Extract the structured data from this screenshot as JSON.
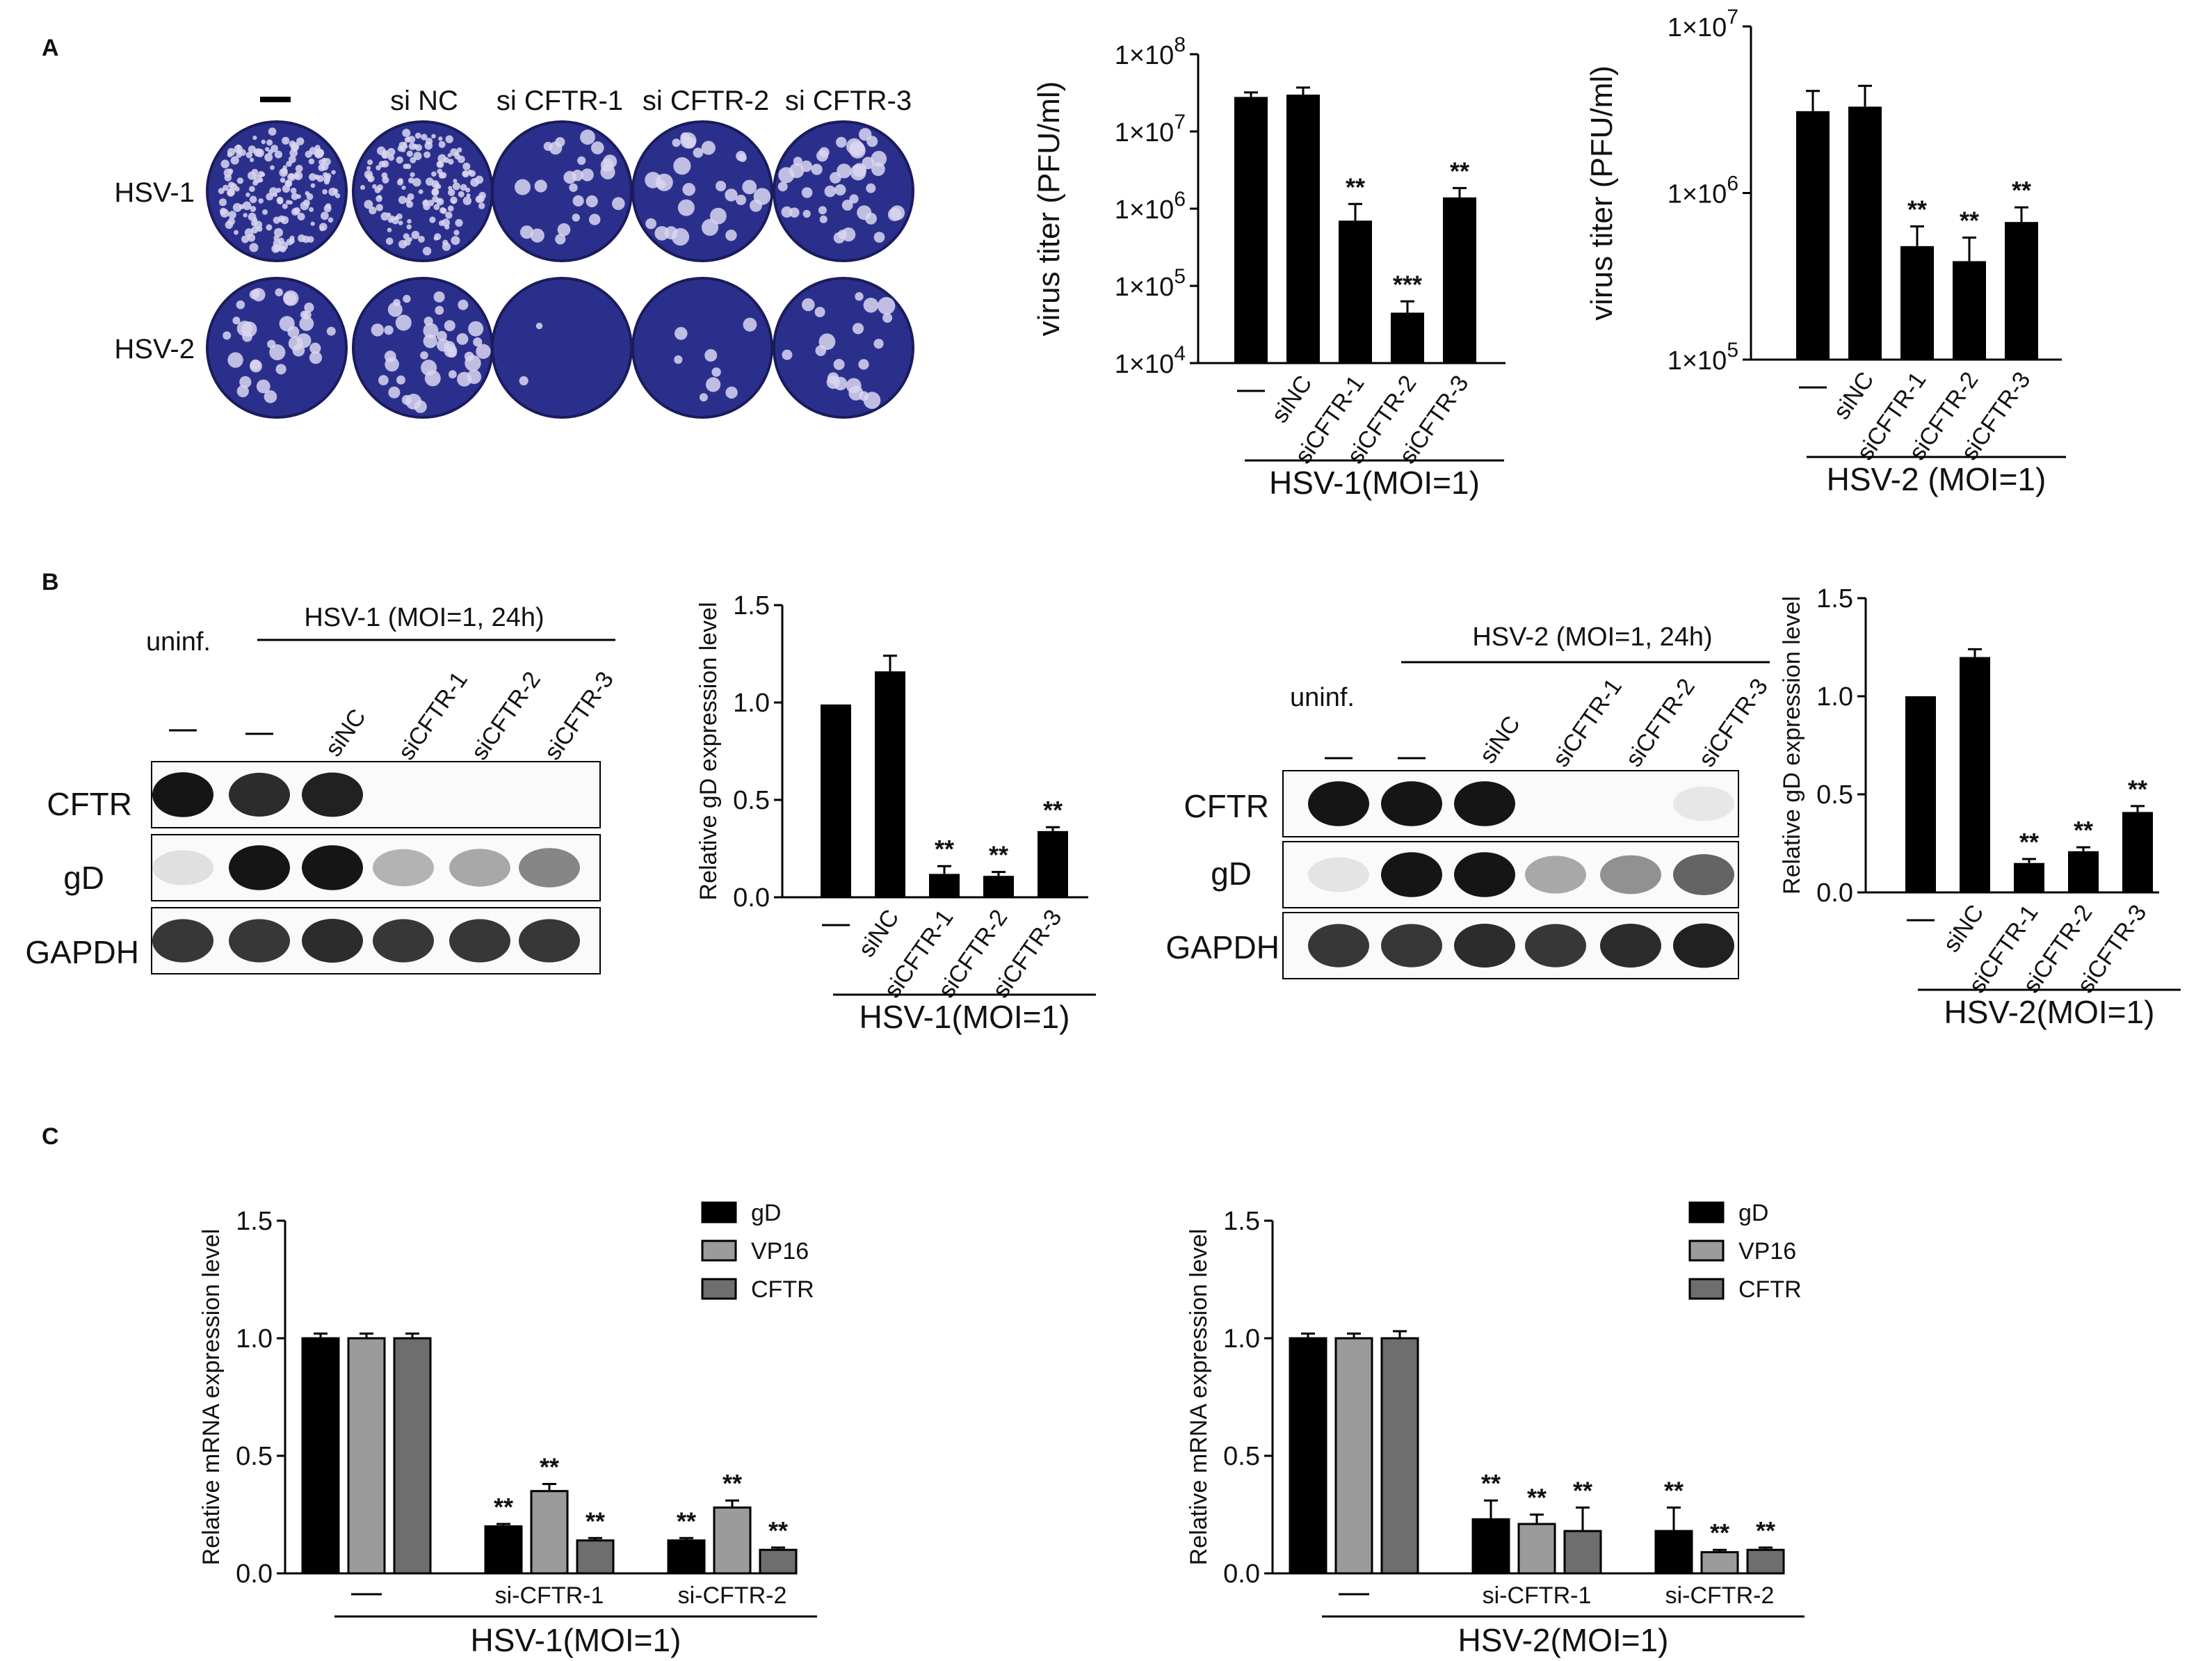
{
  "panels": {
    "a": "A",
    "b": "B",
    "c": "C"
  },
  "colors": {
    "black": "#000000",
    "light_gray": "#9b9b9b",
    "dark_gray": "#6e6e6e",
    "plaque_blue": "#2b2f8c"
  },
  "panel_a": {
    "plaque": {
      "columns": [
        "—",
        "si NC",
        "si CFTR-1",
        "si CFTR-2",
        "si CFTR-3"
      ],
      "rows": [
        "HSV-1",
        "HSV-2"
      ]
    }
  },
  "panel_b": {
    "blot1": {
      "uninf_label": "uninf.",
      "infected_label": "HSV-1 (MOI=1, 24h)",
      "lanes": [
        "—",
        "—",
        "siNC",
        "siCFTR-1",
        "siCFTR-2",
        "siCFTR-3"
      ],
      "rows": [
        "CFTR",
        "gD",
        "GAPDH"
      ]
    },
    "blot2": {
      "uninf_label": "uninf.",
      "infected_label": "HSV-2 (MOI=1, 24h)",
      "lanes": [
        "—",
        "—",
        "siNC",
        "siCFTR-1",
        "siCFTR-2",
        "siCFTR-3"
      ],
      "rows": [
        "CFTR",
        "gD",
        "GAPDH"
      ]
    }
  },
  "chart_data": [
    {
      "id": "a1",
      "type": "bar",
      "scale": "log",
      "ylabel": "virus titer (PFU/ml)",
      "ylim": [
        10000,
        100000000
      ],
      "yticks": [
        {
          "value": 10000,
          "base": "1×10",
          "exp": "4"
        },
        {
          "value": 100000,
          "base": "1×10",
          "exp": "5"
        },
        {
          "value": 1000000,
          "base": "1×10",
          "exp": "6"
        },
        {
          "value": 10000000,
          "base": "1×10",
          "exp": "7"
        },
        {
          "value": 100000000,
          "base": "1×10",
          "exp": "8"
        }
      ],
      "categories": [
        "—",
        "siNC",
        "siCFTR-1",
        "siCFTR-2",
        "siCFTR-3"
      ],
      "values": [
        28000000,
        30000000,
        700000,
        45000,
        1400000
      ],
      "errors": [
        4000000,
        7000000,
        450000,
        18000,
        450000
      ],
      "significance": [
        "",
        "",
        "**",
        "***",
        "**"
      ],
      "group_label": "HSV-1(MOI=1)"
    },
    {
      "id": "a2",
      "type": "bar",
      "scale": "log",
      "ylabel": "virus titer (PFU/ml)",
      "ylim": [
        100000,
        10000000
      ],
      "yticks": [
        {
          "value": 100000,
          "base": "1×10",
          "exp": "5"
        },
        {
          "value": 1000000,
          "base": "1×10",
          "exp": "6"
        },
        {
          "value": 10000000,
          "base": "1×10",
          "exp": "7"
        }
      ],
      "categories": [
        "—",
        "siNC",
        "siCFTR-1",
        "siCFTR-2",
        "siCFTR-3"
      ],
      "values": [
        3100000,
        3300000,
        480000,
        390000,
        670000
      ],
      "errors": [
        1000000,
        1100000,
        150000,
        150000,
        150000
      ],
      "significance": [
        "",
        "",
        "**",
        "**",
        "**"
      ],
      "group_label": "HSV-2 (MOI=1)"
    },
    {
      "id": "b1",
      "type": "bar",
      "scale": "linear",
      "ylabel": "Relative gD expression level",
      "ylim": [
        0,
        1.5
      ],
      "yticks": [
        {
          "value": 0,
          "label": "0.0"
        },
        {
          "value": 0.5,
          "label": "0.5"
        },
        {
          "value": 1,
          "label": "1.0"
        },
        {
          "value": 1.5,
          "label": "1.5"
        }
      ],
      "categories": [
        "—",
        "siNC",
        "siCFTR-1",
        "siCFTR-2",
        "siCFTR-3"
      ],
      "values": [
        0.99,
        1.16,
        0.12,
        0.11,
        0.34
      ],
      "errors": [
        0,
        0.08,
        0.04,
        0.02,
        0.02
      ],
      "significance": [
        "",
        "",
        "**",
        "**",
        "**"
      ],
      "group_label": "HSV-1(MOI=1)"
    },
    {
      "id": "b2",
      "type": "bar",
      "scale": "linear",
      "ylabel": "Relative gD expression level",
      "ylim": [
        0,
        1.5
      ],
      "yticks": [
        {
          "value": 0,
          "label": "0.0"
        },
        {
          "value": 0.5,
          "label": "0.5"
        },
        {
          "value": 1,
          "label": "1.0"
        },
        {
          "value": 1.5,
          "label": "1.5"
        }
      ],
      "categories": [
        "—",
        "siNC",
        "siCFTR-1",
        "siCFTR-2",
        "siCFTR-3"
      ],
      "values": [
        1.0,
        1.2,
        0.15,
        0.21,
        0.41
      ],
      "errors": [
        0,
        0.04,
        0.02,
        0.02,
        0.03
      ],
      "significance": [
        "",
        "",
        "**",
        "**",
        "**"
      ],
      "group_label": "HSV-2(MOI=1)"
    },
    {
      "id": "c1",
      "type": "bar",
      "scale": "linear",
      "ylabel": "Relative mRNA expression level",
      "ylim": [
        0,
        1.5
      ],
      "yticks": [
        {
          "value": 0,
          "label": "0.0"
        },
        {
          "value": 0.5,
          "label": "0.5"
        },
        {
          "value": 1,
          "label": "1.0"
        },
        {
          "value": 1.5,
          "label": "1.5"
        }
      ],
      "categories": [
        "—",
        "si-CFTR-1",
        "si-CFTR-2"
      ],
      "series": [
        {
          "name": "gD",
          "values": [
            1.0,
            0.2,
            0.14
          ],
          "errors": [
            0.02,
            0.01,
            0.01
          ],
          "significance": [
            "",
            "**",
            "**"
          ]
        },
        {
          "name": "VP16",
          "values": [
            1.0,
            0.35,
            0.28
          ],
          "errors": [
            0.02,
            0.03,
            0.03
          ],
          "significance": [
            "",
            "**",
            "**"
          ]
        },
        {
          "name": "CFTR",
          "values": [
            1.0,
            0.14,
            0.1
          ],
          "errors": [
            0.02,
            0.01,
            0.01
          ],
          "significance": [
            "",
            "**",
            "**"
          ]
        }
      ],
      "legend_position": "top-right",
      "group_label": "HSV-1(MOI=1)"
    },
    {
      "id": "c2",
      "type": "bar",
      "scale": "linear",
      "ylabel": "Relative mRNA expression level",
      "ylim": [
        0,
        1.5
      ],
      "yticks": [
        {
          "value": 0,
          "label": "0.0"
        },
        {
          "value": 0.5,
          "label": "0.5"
        },
        {
          "value": 1,
          "label": "1.0"
        },
        {
          "value": 1.5,
          "label": "1.5"
        }
      ],
      "categories": [
        "—",
        "si-CFTR-1",
        "si-CFTR-2"
      ],
      "series": [
        {
          "name": "gD",
          "values": [
            1.0,
            0.23,
            0.18
          ],
          "errors": [
            0.02,
            0.08,
            0.1
          ],
          "significance": [
            "",
            "**",
            "**"
          ]
        },
        {
          "name": "VP16",
          "values": [
            1.0,
            0.21,
            0.09
          ],
          "errors": [
            0.02,
            0.04,
            0.01
          ],
          "significance": [
            "",
            "**",
            "**"
          ]
        },
        {
          "name": "CFTR",
          "values": [
            1.0,
            0.18,
            0.1
          ],
          "errors": [
            0.03,
            0.1,
            0.01
          ],
          "significance": [
            "",
            "**",
            "**"
          ]
        }
      ],
      "legend_position": "top-right",
      "group_label": "HSV-2(MOI=1)"
    }
  ]
}
